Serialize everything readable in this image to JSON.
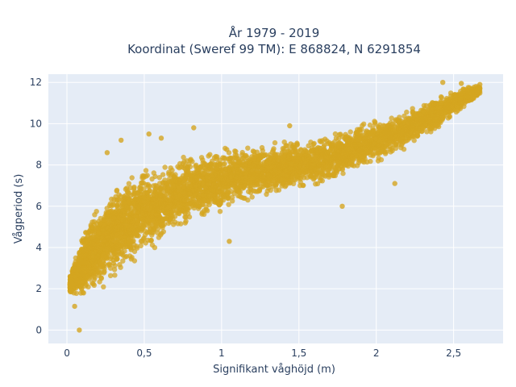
{
  "chart_data": {
    "type": "scatter",
    "title_line1": "År 1979 - 2019",
    "title_line2": "Koordinat (Sweref 99 TM): E 868824, N 6291854",
    "xlabel": "Signifikant våghöjd (m)",
    "ylabel": "Vågperiod (s)",
    "xlim": [
      -0.12,
      2.82
    ],
    "ylim": [
      -0.65,
      12.4
    ],
    "x_ticks": [
      0,
      0.5,
      1,
      1.5,
      2,
      2.5
    ],
    "x_tick_labels": [
      "0",
      "0,5",
      "1",
      "1,5",
      "2",
      "2,5"
    ],
    "y_ticks": [
      0,
      2,
      4,
      6,
      8,
      10,
      12
    ],
    "y_tick_labels": [
      "0",
      "2",
      "4",
      "6",
      "8",
      "10",
      "12"
    ],
    "grid": true,
    "point_color": "#D4A520",
    "plot_background": "#E5ECF6",
    "trend": {
      "x": [
        0.02,
        0.1,
        0.2,
        0.3,
        0.4,
        0.5,
        0.6,
        0.7,
        0.8,
        0.9,
        1.0,
        1.1,
        1.2,
        1.3,
        1.4,
        1.5,
        1.6,
        1.7,
        1.8,
        1.9,
        2.0,
        2.1,
        2.2,
        2.3,
        2.4,
        2.5,
        2.6,
        2.7
      ],
      "y_low": [
        1.7,
        1.4,
        1.8,
        2.3,
        2.9,
        3.5,
        4.0,
        4.5,
        4.9,
        5.3,
        5.6,
        5.9,
        6.1,
        6.3,
        6.5,
        6.6,
        6.8,
        7.0,
        7.3,
        7.6,
        7.9,
        8.3,
        8.7,
        9.2,
        9.7,
        10.3,
        10.9,
        11.5
      ],
      "y_high": [
        2.7,
        4.8,
        6.4,
        7.2,
        7.7,
        8.0,
        8.3,
        8.5,
        8.7,
        8.8,
        8.9,
        9.0,
        9.1,
        9.2,
        9.3,
        9.4,
        9.5,
        9.7,
        9.9,
        10.1,
        10.3,
        10.5,
        10.8,
        11.1,
        11.4,
        11.7,
        11.9,
        11.95
      ]
    },
    "outliers": [
      {
        "x": 0.08,
        "y": 0.0
      },
      {
        "x": 0.05,
        "y": 1.15
      },
      {
        "x": 0.53,
        "y": 9.5
      },
      {
        "x": 0.82,
        "y": 9.8
      },
      {
        "x": 2.43,
        "y": 12.0
      },
      {
        "x": 2.67,
        "y": 11.9
      },
      {
        "x": 2.55,
        "y": 11.95
      },
      {
        "x": 0.61,
        "y": 9.3
      },
      {
        "x": 1.44,
        "y": 9.9
      },
      {
        "x": 1.05,
        "y": 4.3
      },
      {
        "x": 1.78,
        "y": 6.0
      },
      {
        "x": 2.12,
        "y": 7.1
      },
      {
        "x": 0.26,
        "y": 8.6
      },
      {
        "x": 0.35,
        "y": 9.2
      }
    ]
  }
}
